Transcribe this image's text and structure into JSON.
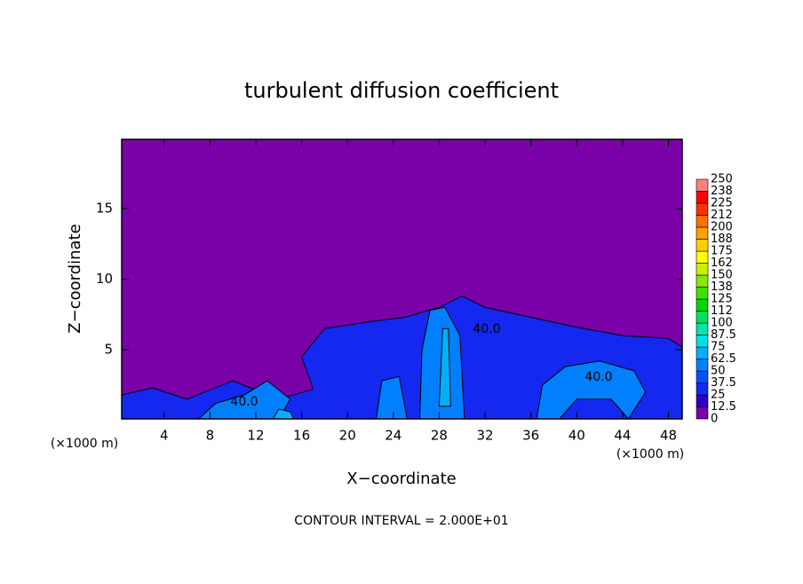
{
  "chart_data": {
    "type": "contour",
    "title": "turbulent diffusion coefficient",
    "x_label": "X−coordinate",
    "y_label": "Z−coordinate",
    "x_unit": "(×1000 m)",
    "footnote": "CONTOUR INTERVAL = 2.000E+01",
    "contour_labels": [
      "40.0",
      "40.0",
      "40.0"
    ],
    "background_value": 5,
    "xlim": [
      0.3,
      49.2
    ],
    "ylim": [
      0.1,
      19.9
    ],
    "xticks": [
      4,
      8,
      12,
      16,
      20,
      24,
      28,
      32,
      36,
      40,
      44,
      48
    ],
    "yticks": [
      5,
      10,
      15
    ],
    "colorbar": {
      "ticks": [
        0,
        12.5,
        25,
        37.5,
        50,
        62.5,
        75,
        87.5,
        100,
        {
          "value": 112.5,
          "label": "112"
        },
        125,
        {
          "value": 137.5,
          "label": "138"
        },
        150,
        {
          "value": 162.5,
          "label": "162"
        },
        175,
        {
          "value": 187.5,
          "label": "188"
        },
        200,
        {
          "value": 212.5,
          "label": "212"
        },
        225,
        {
          "value": 237.5,
          "label": "238"
        },
        250
      ],
      "colors": [
        "#7a00a8",
        "#2a00c8",
        "#1428f0",
        "#0050ff",
        "#0080ff",
        "#00b0ff",
        "#00e0e8",
        "#00e8a8",
        "#00e060",
        "#00d800",
        "#40e000",
        "#88e800",
        "#c8f000",
        "#ffff00",
        "#ffd000",
        "#ffa000",
        "#ff7000",
        "#ff3000",
        "#ff0000",
        "#ff8080"
      ]
    },
    "regions": [
      {
        "value": 30,
        "points": [
          [
            0.3,
            0.1
          ],
          [
            0.3,
            1.8
          ],
          [
            3,
            2.3
          ],
          [
            6,
            1.5
          ],
          [
            10,
            2.8
          ],
          [
            14,
            1.5
          ],
          [
            17,
            2.2
          ],
          [
            16,
            4.5
          ],
          [
            18,
            6.5
          ],
          [
            22,
            7.0
          ],
          [
            25,
            7.3
          ],
          [
            28,
            8.0
          ],
          [
            30,
            8.8
          ],
          [
            32,
            8.0
          ],
          [
            36,
            7.3
          ],
          [
            40,
            6.6
          ],
          [
            44,
            6.0
          ],
          [
            48,
            5.8
          ],
          [
            49.2,
            5.2
          ],
          [
            49.2,
            0.1
          ]
        ]
      },
      {
        "value": 55,
        "points": [
          [
            26.3,
            0.1
          ],
          [
            26.5,
            5
          ],
          [
            27.2,
            7.8
          ],
          [
            28.5,
            8.0
          ],
          [
            29.8,
            6
          ],
          [
            30.2,
            0.1
          ]
        ]
      },
      {
        "value": 55,
        "points": [
          [
            36.5,
            0.1
          ],
          [
            37,
            2.5
          ],
          [
            39,
            3.8
          ],
          [
            42,
            4.2
          ],
          [
            45,
            3.5
          ],
          [
            46,
            2.0
          ],
          [
            44.5,
            0.1
          ],
          [
            43,
            1.5
          ],
          [
            40,
            1.5
          ],
          [
            38.5,
            0.1
          ]
        ]
      },
      {
        "value": 55,
        "points": [
          [
            7,
            0.1
          ],
          [
            8.5,
            1.2
          ],
          [
            11,
            1.8
          ],
          [
            13,
            2.8
          ],
          [
            15,
            1.5
          ],
          [
            14,
            0.1
          ]
        ]
      },
      {
        "value": 55,
        "points": [
          [
            22.5,
            0.1
          ],
          [
            23,
            2.8
          ],
          [
            24.5,
            3.1
          ],
          [
            25.2,
            0.1
          ]
        ]
      },
      {
        "value": 70,
        "points": [
          [
            13.5,
            0.1
          ],
          [
            14,
            0.8
          ],
          [
            15,
            0.6
          ],
          [
            15.3,
            0.1
          ]
        ]
      },
      {
        "value": 70,
        "points": [
          [
            28,
            1
          ],
          [
            28.3,
            6.5
          ],
          [
            28.8,
            6.5
          ],
          [
            29,
            1
          ]
        ]
      }
    ]
  }
}
